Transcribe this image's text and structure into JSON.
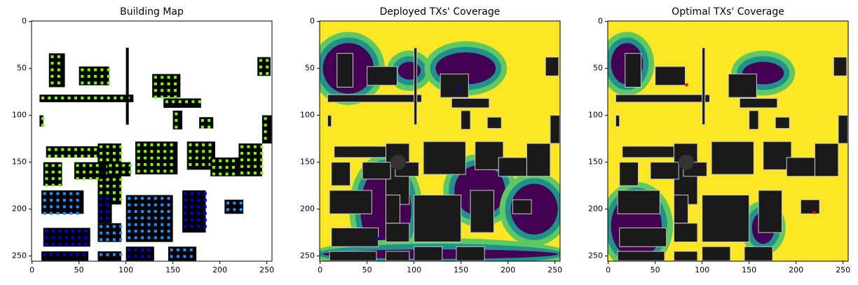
{
  "chart_data": [
    {
      "type": "image",
      "title": "Building Map",
      "palette": "buildings",
      "xlim": [
        -0.5,
        255.5
      ],
      "ylim": [
        255.5,
        -0.5
      ],
      "xticks": [
        0,
        50,
        100,
        150,
        200,
        250
      ],
      "yticks": [
        0,
        50,
        100,
        150,
        200,
        250
      ]
    },
    {
      "type": "image",
      "title": "Deployed TXs' Coverage",
      "palette": "coverage",
      "xlim": [
        -0.5,
        255.5
      ],
      "ylim": [
        255.5,
        -0.5
      ],
      "xticks": [
        0,
        50,
        100,
        150,
        200,
        250
      ],
      "yticks": [
        0,
        50,
        100,
        150,
        200,
        250
      ]
    },
    {
      "type": "image",
      "title": "Optimal TXs' Coverage",
      "palette": "coverage",
      "xlim": [
        -0.5,
        255.5
      ],
      "ylim": [
        255.5,
        -0.5
      ],
      "xticks": [
        0,
        50,
        100,
        150,
        200,
        250
      ],
      "yticks": [
        0,
        50,
        100,
        150,
        200,
        250
      ]
    }
  ]
}
